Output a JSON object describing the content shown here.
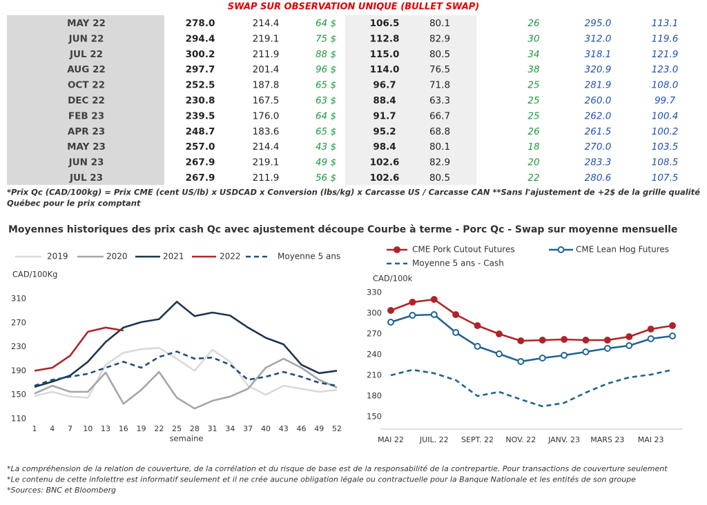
{
  "title": "SWAP SUR OBSERVATION UNIQUE (BULLET SWAP)",
  "table": {
    "rows": [
      [
        "MAY 22",
        "278.0",
        "214.4",
        "64 $",
        "106.5",
        "80.1",
        "26",
        "295.0",
        "113.1"
      ],
      [
        "JUN 22",
        "294.4",
        "219.1",
        "75 $",
        "112.8",
        "82.9",
        "30",
        "312.0",
        "119.6"
      ],
      [
        "JUL 22",
        "300.2",
        "211.9",
        "88 $",
        "115.0",
        "80.5",
        "34",
        "318.1",
        "121.9"
      ],
      [
        "AUG 22",
        "297.7",
        "201.4",
        "96 $",
        "114.0",
        "76.5",
        "38",
        "320.9",
        "123.0"
      ],
      [
        "OCT 22",
        "252.5",
        "187.8",
        "65 $",
        "96.7",
        "71.8",
        "25",
        "281.9",
        "108.0"
      ],
      [
        "DEC 22",
        "230.8",
        "167.5",
        "63 $",
        "88.4",
        "63.3",
        "25",
        "260.0",
        "99.7"
      ],
      [
        "FEB 23",
        "239.5",
        "176.0",
        "64 $",
        "91.7",
        "66.7",
        "25",
        "262.0",
        "100.4"
      ],
      [
        "APR 23",
        "248.7",
        "183.6",
        "65 $",
        "95.2",
        "68.8",
        "26",
        "261.5",
        "100.2"
      ],
      [
        "MAY 23",
        "257.0",
        "214.4",
        "43 $",
        "98.4",
        "80.1",
        "18",
        "270.0",
        "103.5"
      ],
      [
        "JUN 23",
        "267.9",
        "219.1",
        "49 $",
        "102.6",
        "82.9",
        "20",
        "283.3",
        "108.5"
      ],
      [
        "JUL 23",
        "267.9",
        "211.9",
        "56 $",
        "102.6",
        "80.5",
        "22",
        "280.6",
        "107.5"
      ]
    ]
  },
  "footnote": [
    "*Prix Qc (CAD/100kg) = Prix CME (cent US/lb) x USDCAD x Conversion (lbs/kg) x Carcasse US / Carcasse CAN **Sans l'ajustement de +2$ de la grille qualité",
    "Québec pour le prix comptant"
  ],
  "chart_data": [
    {
      "type": "line",
      "title": "Moyennes historiques des prix cash Qc avec ajustement découpe",
      "y_label": "CAD/100Kg",
      "x_label": "semaine",
      "x": [
        1,
        4,
        7,
        10,
        13,
        16,
        19,
        22,
        25,
        28,
        31,
        34,
        37,
        40,
        43,
        46,
        49,
        52
      ],
      "xlim": [
        1,
        52
      ],
      "xticks": [
        1,
        4,
        7,
        10,
        13,
        16,
        19,
        22,
        25,
        28,
        31,
        34,
        37,
        40,
        43,
        46,
        49,
        52
      ],
      "ylim": [
        110,
        310
      ],
      "yticks": [
        110,
        150,
        190,
        230,
        270,
        310
      ],
      "legend": "top",
      "series": [
        {
          "name": "2019",
          "color": "#d9d9d9",
          "values": [
            148,
            155,
            147,
            145,
            200,
            220,
            226,
            228,
            210,
            190,
            225,
            205,
            165,
            150,
            165,
            160,
            155,
            158
          ]
        },
        {
          "name": "2020",
          "color": "#a6a6a6",
          "values": [
            152,
            165,
            155,
            155,
            187,
            135,
            158,
            188,
            145,
            127,
            140,
            147,
            160,
            195,
            210,
            195,
            175,
            162
          ]
        },
        {
          "name": "2021",
          "color": "#1c3450",
          "values": [
            163,
            172,
            182,
            205,
            238,
            262,
            271,
            276,
            305,
            281,
            287,
            282,
            262,
            245,
            234,
            200,
            186,
            190
          ]
        },
        {
          "name": "2022",
          "color": "#b0232a",
          "values": [
            190,
            195,
            215,
            255,
            262,
            257,
            null,
            null,
            null,
            null,
            null,
            null,
            null,
            null,
            null,
            null,
            null,
            null
          ]
        },
        {
          "name": "Moyenne 5 ans",
          "color": "#1f4e79",
          "dash": true,
          "values": [
            165,
            175,
            180,
            185,
            195,
            205,
            195,
            213,
            222,
            210,
            212,
            200,
            175,
            180,
            188,
            180,
            170,
            165
          ]
        }
      ]
    },
    {
      "type": "line",
      "title": "Courbe à terme - Porc Qc - Swap sur moyenne mensuelle",
      "y_label": "CAD/100k",
      "categories": [
        "MAI 22",
        null,
        "JUIL. 22",
        null,
        "SEPT. 22",
        null,
        "NOV. 22",
        null,
        "JANV. 23",
        null,
        "MARS 23",
        null,
        "MAI 23",
        null
      ],
      "ylim": [
        150,
        330
      ],
      "yticks": [
        150,
        180,
        210,
        240,
        270,
        300,
        330
      ],
      "legend": "top",
      "series": [
        {
          "name": "CME Pork Cutout Futures",
          "color": "#b0232a",
          "marker_fill": "#b0232a",
          "values": [
            304,
            316,
            320,
            298,
            282,
            270,
            260,
            261,
            262,
            261,
            261,
            266,
            277,
            282
          ]
        },
        {
          "name": "CME Lean Hog Futures",
          "color": "#1f6391",
          "marker_fill": "#ffffff",
          "values": [
            287,
            297,
            298,
            272,
            252,
            241,
            230,
            235,
            239,
            244,
            249,
            253,
            263,
            267
          ]
        },
        {
          "name": "Moyenne 5 ans - Cash",
          "color": "#1f6391",
          "dash": true,
          "values": [
            210,
            218,
            213,
            203,
            180,
            186,
            175,
            165,
            170,
            185,
            198,
            207,
            211,
            218
          ]
        }
      ]
    }
  ],
  "notes": [
    "*La compréhension de la relation de couverture, de la corrélation et du risque de base est de la responsabilité de la contrepartie. Pour transactions de couverture seulement",
    "*Le contenu de cette infolettre est informatif seulement et il ne crée aucune obligation légale ou contractuelle pour la Banque Nationale et les entités de son groupe",
    "*Sources: BNC et Bloomberg"
  ]
}
